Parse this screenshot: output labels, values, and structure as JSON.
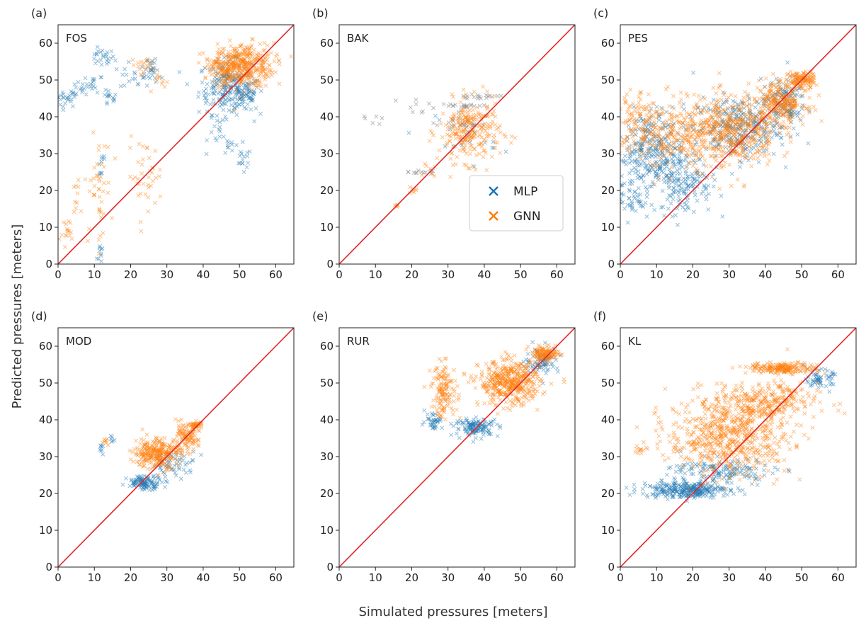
{
  "figure": {
    "xlabel": "Simulated pressures [meters]",
    "ylabel": "Predicted pressures [meters]",
    "legend": {
      "placement": "panel-b lower-right",
      "entries": [
        "MLP",
        "GNN"
      ]
    },
    "colors": {
      "MLP": "#1f77b4",
      "GNN": "#ff7f0e",
      "identity": "#e0282a",
      "gray": "#8c8c8c"
    }
  },
  "chart_data": [
    {
      "type": "scatter",
      "panel_label": "(a)",
      "title": "FOS",
      "xlim": [
        0,
        65
      ],
      "ylim": [
        0,
        65
      ],
      "ticks": [
        0,
        10,
        20,
        30,
        40,
        50,
        60
      ],
      "identity_line": true,
      "series": [
        {
          "name": "MLP",
          "clusters": [
            [
              2,
              45,
              3,
              2,
              25
            ],
            [
              6,
              47,
              2,
              2,
              15
            ],
            [
              10,
              49,
              2,
              2,
              15
            ],
            [
              12,
              56,
              3,
              2,
              25
            ],
            [
              14,
              45,
              2,
              2,
              15
            ],
            [
              23,
              51,
              5,
              3,
              30
            ],
            [
              25,
              54,
              2,
              2,
              15
            ],
            [
              12,
              28,
              1,
              5,
              10
            ],
            [
              12,
              3,
              1,
              3,
              10
            ],
            [
              46,
              48,
              6,
              6,
              180
            ],
            [
              51,
              46,
              4,
              4,
              80
            ],
            [
              51,
              28,
              2,
              3,
              15
            ],
            [
              45,
              36,
              3,
              4,
              15
            ],
            [
              48,
              32,
              2,
              3,
              10
            ]
          ]
        },
        {
          "name": "GNN",
          "clusters": [
            [
              51,
              54,
              7,
              5,
              380
            ],
            [
              46,
              53,
              4,
              3,
              90
            ],
            [
              24,
              54,
              3,
              2,
              20
            ],
            [
              11,
              20,
              3,
              12,
              45
            ],
            [
              24,
              24,
              4,
              8,
              40
            ],
            [
              3,
              8,
              2,
              4,
              15
            ],
            [
              5,
              18,
              2,
              4,
              10
            ],
            [
              29,
              49,
              2,
              2,
              10
            ]
          ]
        }
      ]
    },
    {
      "type": "scatter",
      "panel_label": "(b)",
      "title": "BAK",
      "xlim": [
        0,
        65
      ],
      "ylim": [
        0,
        65
      ],
      "ticks": [
        0,
        10,
        20,
        30,
        40,
        50,
        60
      ],
      "identity_line": true,
      "series": [
        {
          "name": "MLP",
          "clusters": [
            [
              35,
              35,
              7,
              7,
              25
            ]
          ]
        },
        {
          "name": "GNN",
          "clusters": [
            [
              36,
              36,
              7,
              7,
              260
            ],
            [
              16,
              16,
              0.5,
              0.5,
              6
            ],
            [
              20,
              20,
              1,
              1,
              8
            ],
            [
              25,
              25,
              1.5,
              1.5,
              8
            ]
          ]
        },
        {
          "name": "gray",
          "clusters": [
            [
              38,
              45.5,
              5,
              0.4,
              18
            ],
            [
              35,
              43,
              6,
              0.4,
              18
            ],
            [
              35,
              38,
              5,
              0.4,
              14
            ],
            [
              22,
              43,
              6,
              2,
              10
            ],
            [
              22,
              25,
              3,
              0.4,
              12
            ],
            [
              10,
              40,
              4,
              3,
              6
            ]
          ]
        }
      ]
    },
    {
      "type": "scatter",
      "panel_label": "(c)",
      "title": "PES",
      "xlim": [
        0,
        65
      ],
      "ylim": [
        0,
        65
      ],
      "ticks": [
        0,
        10,
        20,
        30,
        40,
        50,
        60
      ],
      "identity_line": true,
      "series": [
        {
          "name": "MLP",
          "clusters": [
            [
              8,
              30,
              8,
              10,
              320
            ],
            [
              18,
              22,
              6,
              7,
              140
            ],
            [
              32,
              37,
              10,
              7,
              300
            ],
            [
              45,
              44,
              5,
              5,
              120
            ],
            [
              3,
              18,
              3,
              5,
              40
            ]
          ]
        },
        {
          "name": "GNN",
          "clusters": [
            [
              30,
              36,
              11,
              8,
              520
            ],
            [
              44,
              44,
              6,
              5,
              280
            ],
            [
              12,
              35,
              10,
              8,
              250
            ],
            [
              50,
              50,
              3,
              2,
              120
            ],
            [
              4,
              40,
              4,
              5,
              60
            ]
          ]
        }
      ]
    },
    {
      "type": "scatter",
      "panel_label": "(d)",
      "title": "MOD",
      "xlim": [
        0,
        65
      ],
      "ylim": [
        0,
        65
      ],
      "ticks": [
        0,
        10,
        20,
        30,
        40,
        50,
        60
      ],
      "identity_line": true,
      "series": [
        {
          "name": "MLP",
          "clusters": [
            [
              24,
              23,
              4,
              1.5,
              110
            ],
            [
              32,
              28,
              5,
              3,
              60
            ],
            [
              12,
              32,
              0.8,
              1,
              8
            ],
            [
              15,
              35,
              0.8,
              1,
              6
            ]
          ]
        },
        {
          "name": "GNN",
          "clusters": [
            [
              27,
              31,
              5,
              3.5,
              280
            ],
            [
              35,
              35,
              3,
              3,
              110
            ],
            [
              13,
              34,
              1,
              0.8,
              8
            ],
            [
              38,
              38.5,
              1.5,
              1,
              40
            ]
          ]
        }
      ]
    },
    {
      "type": "scatter",
      "panel_label": "(e)",
      "title": "RUR",
      "xlim": [
        0,
        65
      ],
      "ylim": [
        0,
        65
      ],
      "ticks": [
        0,
        10,
        20,
        30,
        40,
        50,
        60
      ],
      "identity_line": true,
      "series": [
        {
          "name": "MLP",
          "clusters": [
            [
              38,
              38,
              5,
              2,
              130
            ],
            [
              26,
              40,
              2,
              2,
              40
            ],
            [
              56,
              56,
              4,
              3,
              80
            ]
          ]
        },
        {
          "name": "GNN",
          "clusters": [
            [
              47,
              50,
              7,
              5,
              460
            ],
            [
              29,
              48,
              3,
              6,
              140
            ],
            [
              57,
              58,
              3,
              1.5,
              120
            ]
          ]
        }
      ]
    },
    {
      "type": "scatter",
      "panel_label": "(f)",
      "title": "KL",
      "xlim": [
        0,
        65
      ],
      "ylim": [
        0,
        65
      ],
      "ticks": [
        0,
        10,
        20,
        30,
        40,
        50,
        60
      ],
      "identity_line": true,
      "series": [
        {
          "name": "MLP",
          "clusters": [
            [
              18,
              21,
              10,
              1.8,
              300
            ],
            [
              28,
              26,
              12,
              3,
              150
            ],
            [
              55,
              51,
              3,
              2,
              60
            ]
          ]
        },
        {
          "name": "GNN",
          "clusters": [
            [
              30,
              36,
              14,
              9,
              700
            ],
            [
              45,
              54,
              8,
              1.2,
              200
            ],
            [
              40,
              45,
              12,
              4,
              250
            ],
            [
              5,
              32,
              1,
              1,
              10
            ]
          ]
        }
      ]
    }
  ]
}
